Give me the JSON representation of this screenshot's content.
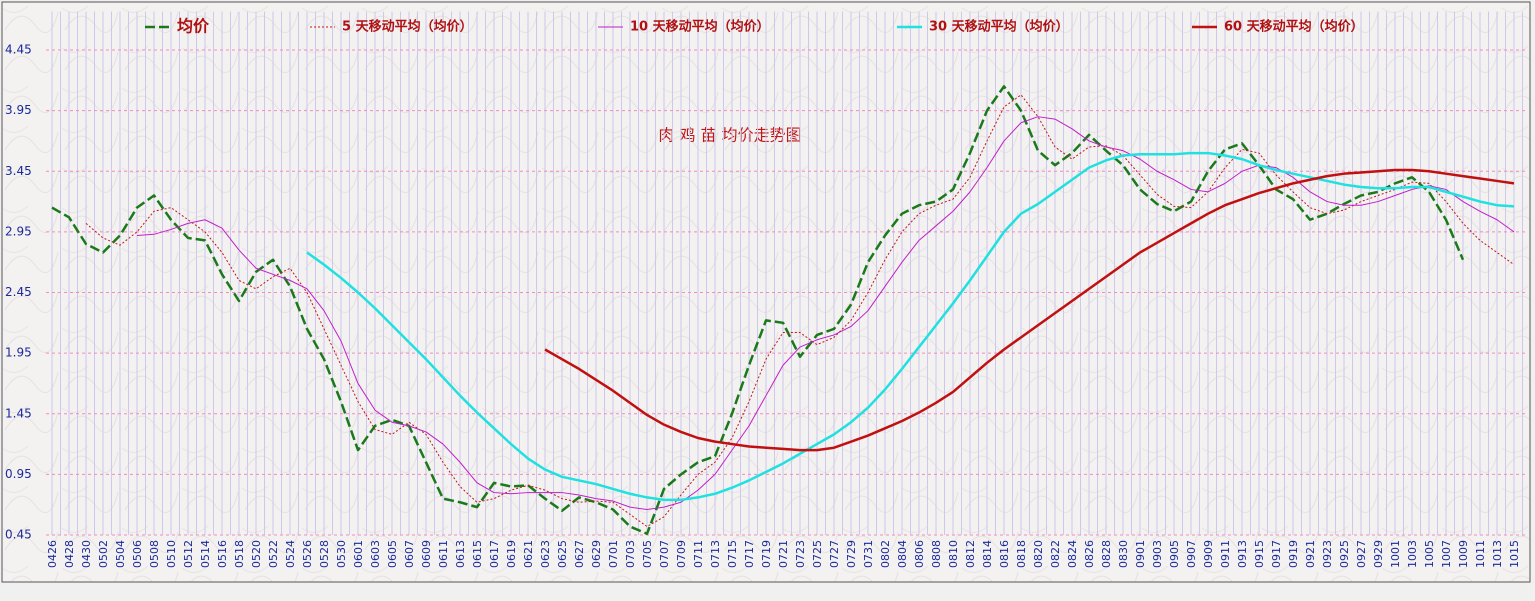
{
  "chart_data": {
    "type": "line",
    "title": "肉 鸡 苗 均价走势图",
    "categories": [
      "0426",
      "0428",
      "0430",
      "0502",
      "0504",
      "0506",
      "0508",
      "0510",
      "0512",
      "0514",
      "0516",
      "0518",
      "0520",
      "0522",
      "0524",
      "0526",
      "0528",
      "0530",
      "0601",
      "0603",
      "0605",
      "0607",
      "0609",
      "0611",
      "0613",
      "0615",
      "0617",
      "0619",
      "0621",
      "0623",
      "0625",
      "0627",
      "0629",
      "0701",
      "0703",
      "0705",
      "0707",
      "0709",
      "0711",
      "0713",
      "0715",
      "0717",
      "0719",
      "0721",
      "0723",
      "0725",
      "0727",
      "0729",
      "0731",
      "0802",
      "0804",
      "0806",
      "0808",
      "0810",
      "0812",
      "0814",
      "0816",
      "0818",
      "0820",
      "0822",
      "0824",
      "0826",
      "0828",
      "0830",
      "0901",
      "0903",
      "0905",
      "0907",
      "0909",
      "0911",
      "0913",
      "0915",
      "0917",
      "0919",
      "0921",
      "0923",
      "0925",
      "0927",
      "0929",
      "1001",
      "1003",
      "1005",
      "1007",
      "1009",
      "1011",
      "1013",
      "1015"
    ],
    "series": [
      {
        "name": "均价",
        "color": "#1a7a1a",
        "style": "dashed",
        "width": 2.5,
        "values": [
          3.15,
          3.07,
          2.85,
          2.78,
          2.92,
          3.15,
          3.25,
          3.05,
          2.9,
          2.88,
          2.6,
          2.38,
          2.62,
          2.72,
          2.5,
          2.15,
          1.9,
          1.55,
          1.15,
          1.35,
          1.4,
          1.35,
          1.05,
          0.75,
          0.72,
          0.68,
          0.88,
          0.85,
          0.86,
          0.75,
          0.65,
          0.76,
          0.72,
          0.66,
          0.52,
          0.46,
          0.83,
          0.95,
          1.05,
          1.1,
          1.45,
          1.85,
          2.22,
          2.2,
          1.92,
          2.1,
          2.15,
          2.35,
          2.7,
          2.92,
          3.1,
          3.17,
          3.2,
          3.3,
          3.6,
          3.95,
          4.15,
          3.95,
          3.62,
          3.5,
          3.6,
          3.75,
          3.62,
          3.5,
          3.3,
          3.18,
          3.12,
          3.2,
          3.45,
          3.63,
          3.68,
          3.5,
          3.3,
          3.22,
          3.05,
          3.1,
          3.18,
          3.25,
          3.28,
          3.35,
          3.4,
          3.28,
          3.05,
          2.72,
          null,
          null,
          null
        ]
      },
      {
        "name": "5 天移动平均（均价）",
        "color": "#c01818",
        "style": "dotted",
        "width": 1,
        "values": [
          null,
          null,
          3.02,
          2.9,
          2.84,
          2.95,
          3.12,
          3.15,
          3.05,
          2.95,
          2.78,
          2.55,
          2.48,
          2.58,
          2.65,
          2.45,
          2.15,
          1.85,
          1.55,
          1.32,
          1.28,
          1.38,
          1.28,
          1.05,
          0.85,
          0.72,
          0.75,
          0.82,
          0.86,
          0.82,
          0.75,
          0.72,
          0.73,
          0.72,
          0.62,
          0.52,
          0.6,
          0.78,
          0.95,
          1.05,
          1.25,
          1.55,
          1.9,
          2.12,
          2.12,
          2.02,
          2.08,
          2.22,
          2.45,
          2.72,
          2.95,
          3.1,
          3.17,
          3.22,
          3.4,
          3.7,
          3.98,
          4.08,
          3.9,
          3.65,
          3.55,
          3.65,
          3.66,
          3.58,
          3.42,
          3.26,
          3.16,
          3.15,
          3.28,
          3.48,
          3.63,
          3.6,
          3.42,
          3.28,
          3.15,
          3.1,
          3.13,
          3.2,
          3.25,
          3.3,
          3.36,
          3.35,
          3.2,
          3.02,
          2.88,
          2.78,
          2.68
        ]
      },
      {
        "name": "10 天移动平均（均价）",
        "color": "#c020c8",
        "style": "solid",
        "width": 1,
        "values": [
          null,
          null,
          null,
          null,
          null,
          2.92,
          2.93,
          2.97,
          3.02,
          3.05,
          2.98,
          2.8,
          2.65,
          2.6,
          2.55,
          2.48,
          2.3,
          2.05,
          1.7,
          1.48,
          1.38,
          1.35,
          1.3,
          1.2,
          1.05,
          0.88,
          0.8,
          0.79,
          0.8,
          0.8,
          0.8,
          0.78,
          0.75,
          0.73,
          0.68,
          0.66,
          0.68,
          0.72,
          0.82,
          0.95,
          1.15,
          1.35,
          1.6,
          1.85,
          2.0,
          2.06,
          2.1,
          2.17,
          2.3,
          2.5,
          2.7,
          2.88,
          3.0,
          3.12,
          3.28,
          3.48,
          3.7,
          3.85,
          3.9,
          3.88,
          3.8,
          3.7,
          3.65,
          3.62,
          3.55,
          3.45,
          3.38,
          3.3,
          3.28,
          3.35,
          3.45,
          3.5,
          3.48,
          3.4,
          3.28,
          3.2,
          3.17,
          3.17,
          3.2,
          3.25,
          3.3,
          3.33,
          3.3,
          3.2,
          3.12,
          3.05,
          2.95
        ]
      },
      {
        "name": "30 天移动平均（均价）",
        "color": "#20e0e0",
        "style": "solid",
        "width": 2.5,
        "values": [
          null,
          null,
          null,
          null,
          null,
          null,
          null,
          null,
          null,
          null,
          null,
          null,
          null,
          null,
          null,
          2.78,
          2.68,
          2.57,
          2.45,
          2.32,
          2.18,
          2.04,
          1.9,
          1.75,
          1.6,
          1.46,
          1.33,
          1.2,
          1.08,
          0.99,
          0.93,
          0.9,
          0.87,
          0.83,
          0.79,
          0.76,
          0.74,
          0.74,
          0.76,
          0.79,
          0.84,
          0.9,
          0.97,
          1.04,
          1.12,
          1.2,
          1.28,
          1.38,
          1.5,
          1.65,
          1.82,
          2.0,
          2.18,
          2.36,
          2.55,
          2.75,
          2.95,
          3.1,
          3.18,
          3.28,
          3.38,
          3.48,
          3.54,
          3.58,
          3.59,
          3.59,
          3.59,
          3.6,
          3.6,
          3.58,
          3.55,
          3.5,
          3.46,
          3.43,
          3.4,
          3.37,
          3.34,
          3.32,
          3.31,
          3.31,
          3.32,
          3.32,
          3.28,
          3.24,
          3.2,
          3.17,
          3.16
        ]
      },
      {
        "name": "60 天移动平均（均价）",
        "color": "#c01010",
        "style": "solid",
        "width": 2.5,
        "values": [
          null,
          null,
          null,
          null,
          null,
          null,
          null,
          null,
          null,
          null,
          null,
          null,
          null,
          null,
          null,
          null,
          null,
          null,
          null,
          null,
          null,
          null,
          null,
          null,
          null,
          null,
          null,
          null,
          null,
          1.98,
          1.9,
          1.82,
          1.73,
          1.64,
          1.54,
          1.44,
          1.36,
          1.3,
          1.25,
          1.22,
          1.2,
          1.18,
          1.17,
          1.16,
          1.15,
          1.15,
          1.17,
          1.22,
          1.27,
          1.33,
          1.39,
          1.46,
          1.54,
          1.63,
          1.75,
          1.87,
          1.98,
          2.08,
          2.18,
          2.28,
          2.38,
          2.48,
          2.58,
          2.68,
          2.78,
          2.86,
          2.94,
          3.02,
          3.1,
          3.17,
          3.22,
          3.27,
          3.31,
          3.35,
          3.38,
          3.41,
          3.43,
          3.44,
          3.45,
          3.46,
          3.46,
          3.45,
          3.43,
          3.41,
          3.39,
          3.37,
          3.35
        ]
      }
    ],
    "ylim": [
      0.45,
      4.8
    ],
    "yticks": [
      0.45,
      0.95,
      1.45,
      1.95,
      2.45,
      2.95,
      3.45,
      3.95,
      4.45
    ],
    "grid": true
  }
}
